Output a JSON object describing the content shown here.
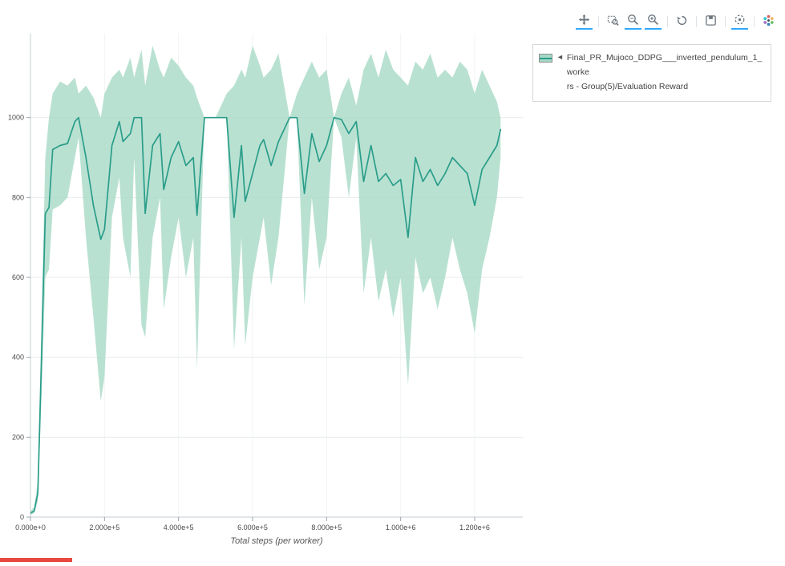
{
  "page": {
    "background": "#ffffff"
  },
  "modebar": {
    "icons": [
      {
        "name": "pan-icon",
        "active": true,
        "sep_after": true
      },
      {
        "name": "box-zoom-icon",
        "active": false,
        "sep_after": false
      },
      {
        "name": "zoom-out-icon",
        "active": true,
        "sep_after": false
      },
      {
        "name": "zoom-in-icon",
        "active": true,
        "sep_after": true
      },
      {
        "name": "reset-axes-icon",
        "active": false,
        "sep_after": true
      },
      {
        "name": "save-icon",
        "active": false,
        "sep_after": true
      },
      {
        "name": "hover-icon",
        "active": true,
        "sep_after": true
      },
      {
        "name": "plotly-logo-icon",
        "active": false,
        "sep_after": false
      }
    ],
    "icon_color": "#5b6771",
    "active_underline_color": "#1a9fff"
  },
  "legend": {
    "collapse_icon": "◄",
    "line1": "Final_PR_Mujoco_DDPG___inverted_pendulum_1_worke",
    "line2": "rs - Group(5)/Evaluation Reward",
    "full_label": "Final_PR_Mujoco_DDPG___inverted_pendulum_1_workers - Group(5)/Evaluation Reward"
  },
  "chart_data": {
    "type": "line",
    "title": "",
    "xlabel": "Total steps (per worker)",
    "ylabel": "",
    "grid": true,
    "legend_position": "right",
    "xlim": [
      0,
      1330000
    ],
    "ylim": [
      0,
      1210
    ],
    "x_ticks": [
      0,
      200000,
      400000,
      600000,
      800000,
      1000000,
      1200000
    ],
    "x_tick_labels": [
      "0.000e+0",
      "2.000e+5",
      "4.000e+5",
      "6.000e+5",
      "8.000e+5",
      "1.000e+6",
      "1.200e+6"
    ],
    "y_ticks": [
      0,
      200,
      400,
      600,
      800,
      1000
    ],
    "series": [
      {
        "name": "Final_PR_Mujoco_DDPG___inverted_pendulum_1_workers - Group(5)/Evaluation Reward",
        "color": "#2a9d8a",
        "band_color": "#a7d9c6",
        "band_opacity": 0.8,
        "x": [
          0,
          10000,
          20000,
          30000,
          40000,
          50000,
          60000,
          80000,
          100000,
          120000,
          130000,
          150000,
          170000,
          190000,
          200000,
          220000,
          240000,
          250000,
          270000,
          280000,
          300000,
          310000,
          330000,
          350000,
          360000,
          380000,
          400000,
          420000,
          440000,
          450000,
          470000,
          500000,
          530000,
          550000,
          570000,
          580000,
          600000,
          620000,
          630000,
          650000,
          670000,
          700000,
          720000,
          740000,
          760000,
          780000,
          800000,
          820000,
          840000,
          860000,
          880000,
          900000,
          920000,
          940000,
          960000,
          980000,
          1000000,
          1020000,
          1040000,
          1060000,
          1080000,
          1100000,
          1120000,
          1140000,
          1160000,
          1180000,
          1200000,
          1220000,
          1240000,
          1260000,
          1270000
        ],
        "mean": [
          10,
          15,
          60,
          400,
          760,
          775,
          920,
          930,
          935,
          990,
          1000,
          900,
          780,
          695,
          720,
          930,
          990,
          940,
          960,
          1000,
          1000,
          760,
          930,
          960,
          820,
          900,
          940,
          880,
          900,
          755,
          1000,
          1000,
          1000,
          750,
          930,
          790,
          860,
          930,
          945,
          880,
          940,
          1000,
          1000,
          810,
          960,
          890,
          930,
          1000,
          995,
          960,
          990,
          840,
          930,
          840,
          860,
          830,
          845,
          700,
          900,
          840,
          870,
          830,
          860,
          900,
          880,
          860,
          780,
          870,
          900,
          930,
          970
        ],
        "lower": [
          5,
          10,
          40,
          300,
          600,
          620,
          770,
          780,
          800,
          900,
          950,
          700,
          500,
          290,
          350,
          750,
          850,
          700,
          600,
          900,
          480,
          450,
          700,
          800,
          520,
          650,
          750,
          600,
          700,
          370,
          1000,
          1000,
          1000,
          420,
          700,
          430,
          600,
          700,
          750,
          580,
          700,
          1000,
          1000,
          530,
          800,
          620,
          700,
          1000,
          950,
          800,
          950,
          560,
          700,
          540,
          620,
          500,
          600,
          330,
          650,
          560,
          600,
          520,
          600,
          700,
          620,
          560,
          460,
          620,
          700,
          800,
          900
        ],
        "upper": [
          15,
          25,
          90,
          500,
          900,
          1000,
          1060,
          1090,
          1080,
          1100,
          1060,
          1080,
          1050,
          1000,
          1060,
          1100,
          1120,
          1100,
          1150,
          1100,
          1170,
          1080,
          1180,
          1120,
          1100,
          1150,
          1130,
          1100,
          1080,
          1050,
          1000,
          1000,
          1060,
          1080,
          1120,
          1100,
          1180,
          1130,
          1100,
          1120,
          1160,
          1000,
          1060,
          1100,
          1140,
          1100,
          1120,
          1000,
          1060,
          1100,
          1030,
          1120,
          1160,
          1100,
          1170,
          1120,
          1100,
          1080,
          1140,
          1120,
          1160,
          1100,
          1120,
          1100,
          1140,
          1120,
          1060,
          1120,
          1080,
          1040,
          1000
        ]
      }
    ]
  }
}
